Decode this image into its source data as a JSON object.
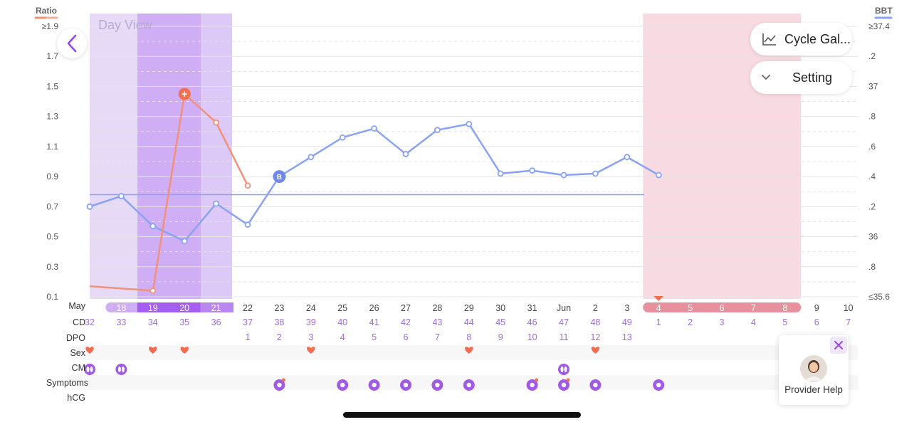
{
  "header": {
    "left_axis_title": "Ratio",
    "right_axis_title": "BBT",
    "view_label": "Day View",
    "ratio_legend_color": "#e8565e",
    "bbt_legend_color": "#7b93f0"
  },
  "buttons": {
    "back_icon": "chevron-left-icon",
    "cycle_gallery": "Cycle Gal...",
    "cycle_gallery_icon": "line-chart-icon",
    "setting": "Setting",
    "setting_icon": "chevron-down-icon"
  },
  "axes": {
    "left_ticks": [
      "≥1.9",
      "1.7",
      "1.5",
      "1.3",
      "1.1",
      "0.9",
      "0.7",
      "0.5",
      "0.3",
      "0.1"
    ],
    "right_ticks": [
      "≥37.4",
      ".2",
      "37",
      ".8",
      ".6",
      ".4",
      ".2",
      "36",
      ".8",
      "≤35.6"
    ]
  },
  "rows": {
    "month_label": "May",
    "cd_label": "CD",
    "dpo_label": "DPO",
    "sex_label": "Sex",
    "cm_label": "CM",
    "symptoms_label": "Symptoms",
    "hcg_label": "hCG"
  },
  "chart_data": {
    "type": "line",
    "dates": [
      "",
      "18",
      "19",
      "20",
      "21",
      "22",
      "23",
      "24",
      "25",
      "26",
      "27",
      "28",
      "29",
      "30",
      "31",
      "Jun",
      "2",
      "3",
      "4",
      "5",
      "6",
      "7",
      "8",
      "9",
      "10"
    ],
    "cd": [
      "32",
      "33",
      "34",
      "35",
      "36",
      "37",
      "38",
      "39",
      "40",
      "41",
      "42",
      "43",
      "44",
      "45",
      "46",
      "47",
      "48",
      "49",
      "1",
      "2",
      "3",
      "4",
      "5",
      "6",
      "7"
    ],
    "dpo": [
      "",
      "",
      "",
      "",
      "",
      "1",
      "2",
      "3",
      "4",
      "5",
      "6",
      "7",
      "8",
      "9",
      "10",
      "11",
      "12",
      "13",
      "",
      "",
      "",
      "",
      "",
      "",
      ""
    ],
    "bbt": {
      "name": "BBT",
      "values": [
        36.2,
        36.27,
        36.07,
        35.97,
        36.22,
        36.08,
        36.4,
        36.53,
        36.66,
        36.72,
        36.55,
        36.71,
        36.75,
        36.42,
        36.44,
        36.41,
        36.42,
        36.53,
        36.41
      ],
      "cover_line": 36.28
    },
    "ratio": {
      "name": "Ratio",
      "points": [
        {
          "i": 0,
          "v": 0.17
        },
        {
          "i": 2,
          "v": 0.14
        },
        {
          "i": 3,
          "v": 1.45
        },
        {
          "i": 4,
          "v": 1.26
        },
        {
          "i": 5,
          "v": 0.84
        }
      ]
    },
    "left_ylim": [
      0.1,
      1.9
    ],
    "right_ylim": [
      35.6,
      37.4
    ],
    "highlighted_dates": [
      "18",
      "19",
      "20",
      "21"
    ],
    "fertile_window_dates": [
      "19",
      "20"
    ],
    "period_dates": [
      "4",
      "5",
      "6",
      "7",
      "8"
    ],
    "annotations": {
      "bbt_marker_label": "B",
      "ratio_peak_symbol": "+"
    },
    "sex_days": [
      0,
      2,
      3,
      7,
      12,
      16
    ],
    "cm_days": [
      0,
      1,
      15
    ],
    "symptom_days": [
      6,
      8,
      9,
      10,
      11,
      12,
      14,
      15,
      16,
      18
    ],
    "colors": {
      "bbt": "#8aa2f2",
      "ratio": "#f2907a",
      "ratio_peak": "#f07050",
      "fertile_light": "#e6daf7",
      "fertile_mid": "#ddc9f7",
      "fertile_dark": "#cfaef6",
      "period": "#f8dbe2",
      "period_row": "#e7919f",
      "purple_text": "#9c6cd6",
      "heart": "#f46b4f",
      "icon": "#a25ae6"
    }
  },
  "help": {
    "label": "Provider Help",
    "close_icon": "close-icon",
    "avatar": "provider-avatar"
  }
}
